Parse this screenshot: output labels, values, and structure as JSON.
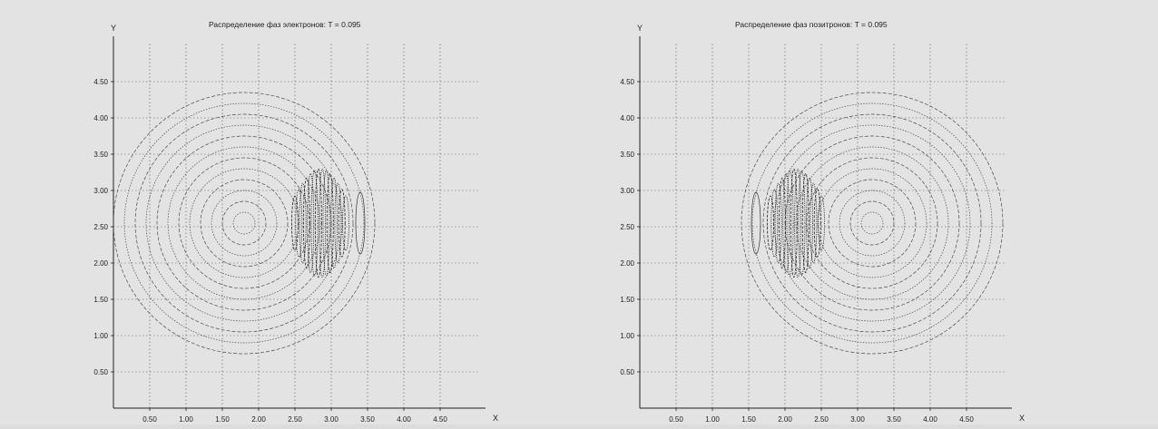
{
  "chart_data": [
    {
      "type": "contour",
      "title": "Распределение фаз электронов:  T = 0.095",
      "xlabel": "X",
      "ylabel": "Y",
      "xlim": [
        0.0,
        5.0
      ],
      "ylim": [
        0.0,
        5.0
      ],
      "x_ticks": [
        0.5,
        1.0,
        1.5,
        2.0,
        2.5,
        3.0,
        3.5,
        4.0,
        4.5
      ],
      "y_ticks": [
        0.5,
        1.0,
        1.5,
        2.0,
        2.5,
        3.0,
        3.5,
        4.0,
        4.5
      ],
      "grid": true,
      "center": [
        1.8,
        2.55
      ],
      "ring_radii": [
        0.15,
        0.3,
        0.45,
        0.6,
        0.75,
        0.9,
        1.05,
        1.2,
        1.35,
        1.5,
        1.65,
        1.8
      ],
      "dense_band_x": [
        2.5,
        3.2
      ],
      "side_lobe_x": 3.4
    },
    {
      "type": "contour",
      "title": "Распределение фаз позитронов:  T = 0.095",
      "xlabel": "X",
      "ylabel": "Y",
      "xlim": [
        0.0,
        5.0
      ],
      "ylim": [
        0.0,
        5.0
      ],
      "x_ticks": [
        0.5,
        1.0,
        1.5,
        2.0,
        2.5,
        3.0,
        3.5,
        4.0,
        4.5
      ],
      "y_ticks": [
        0.5,
        1.0,
        1.5,
        2.0,
        2.5,
        3.0,
        3.5,
        4.0,
        4.5
      ],
      "grid": true,
      "center": [
        3.2,
        2.55
      ],
      "ring_radii": [
        0.15,
        0.3,
        0.45,
        0.6,
        0.75,
        0.9,
        1.05,
        1.2,
        1.35,
        1.5,
        1.65,
        1.8
      ],
      "dense_band_x": [
        1.8,
        2.5
      ],
      "side_lobe_x": 1.6
    }
  ]
}
